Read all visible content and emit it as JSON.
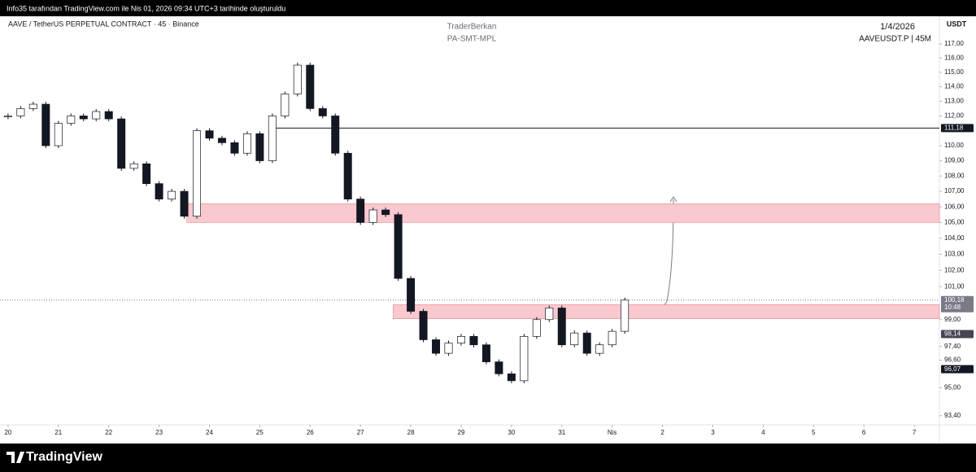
{
  "header": {
    "caption": "Info35 tarafından TradingView.com ile Nis 01, 2026 09:34 UTC+3 tarihinde oluşturuldu"
  },
  "chart_data": {
    "type": "candlestick",
    "title": "AAVE / TetherUS PERPETUAL CONTRACT · 45 · Binance",
    "author": "TraderBerkan",
    "subtitle": "PA-SMT-MPL",
    "date": "1/4/2026",
    "symbol": "AAVEUSDT.P | 45M",
    "y_axis_label": "USDT",
    "log": true,
    "up_color": "#ffffff",
    "down_color": "#131722",
    "x": [
      0,
      0.25,
      0.5,
      0.75,
      1,
      1.25,
      1.5,
      1.75,
      2,
      2.25,
      2.5,
      2.75,
      3,
      3.25,
      3.5,
      3.75,
      4,
      4.25,
      4.5,
      4.75,
      5,
      5.25,
      5.5,
      5.75,
      6,
      6.25,
      6.5,
      6.75,
      7,
      7.25,
      7.5,
      7.75,
      8,
      8.25,
      8.5,
      8.75,
      9,
      9.25,
      9.5,
      9.75,
      10,
      10.25,
      10.5,
      10.75,
      11,
      11.25,
      11.5,
      11.75,
      12,
      12.25
    ],
    "values": [
      112.0,
      112.5,
      112.8,
      110.0,
      111.5,
      112.0,
      111.8,
      112.3,
      111.8,
      108.5,
      108.8,
      107.5,
      106.5,
      107.0,
      105.4,
      111.0,
      110.5,
      110.2,
      109.5,
      110.8,
      109.0,
      112.0,
      113.5,
      115.5,
      112.5,
      112.0,
      109.5,
      106.5,
      105.0,
      105.8,
      105.5,
      101.5,
      99.5,
      97.8,
      97.0,
      97.6,
      98.0,
      97.5,
      96.5,
      95.8,
      95.4,
      98.0,
      99.0,
      99.7,
      97.5,
      98.2,
      97.0,
      97.5,
      98.3,
      100.18
    ],
    "xlim": [
      -0.16,
      18.5
    ],
    "xticks": [
      {
        "value": 0,
        "label": "20"
      },
      {
        "value": 1,
        "label": "21"
      },
      {
        "value": 2,
        "label": "22"
      },
      {
        "value": 3,
        "label": "23"
      },
      {
        "value": 4,
        "label": "24"
      },
      {
        "value": 5,
        "label": "25"
      },
      {
        "value": 6,
        "label": "26"
      },
      {
        "value": 7,
        "label": "27"
      },
      {
        "value": 8,
        "label": "28"
      },
      {
        "value": 9,
        "label": "29"
      },
      {
        "value": 10,
        "label": "30"
      },
      {
        "value": 11,
        "label": "31"
      },
      {
        "value": 12,
        "label": "Nis"
      },
      {
        "value": 13,
        "label": "2"
      },
      {
        "value": 14,
        "label": "3"
      },
      {
        "value": 15,
        "label": "4"
      },
      {
        "value": 16,
        "label": "5"
      },
      {
        "value": 17,
        "label": "6"
      },
      {
        "value": 18,
        "label": "7"
      }
    ],
    "ylim": [
      92.98,
      118.97
    ],
    "yticks": [
      {
        "value": 117,
        "label": "117,00"
      },
      {
        "value": 116,
        "label": "116,00"
      },
      {
        "value": 115,
        "label": "115,00"
      },
      {
        "value": 114,
        "label": "114,00"
      },
      {
        "value": 113,
        "label": "113,00"
      },
      {
        "value": 112,
        "label": "112,00"
      },
      {
        "value": 110,
        "label": "110,00"
      },
      {
        "value": 109,
        "label": "109,00"
      },
      {
        "value": 108,
        "label": "108,00"
      },
      {
        "value": 107,
        "label": "107,00"
      },
      {
        "value": 106,
        "label": "106,00"
      },
      {
        "value": 105,
        "label": "105,00"
      },
      {
        "value": 104,
        "label": "104,00"
      },
      {
        "value": 103,
        "label": "103,00"
      },
      {
        "value": 102,
        "label": "102,00"
      },
      {
        "value": 101,
        "label": "101,00"
      },
      {
        "value": 99,
        "label": "99,00"
      },
      {
        "value": 97.4,
        "label": "97,40"
      },
      {
        "value": 96.6,
        "label": "96,60"
      },
      {
        "value": 95,
        "label": "95,00"
      },
      {
        "value": 93.4,
        "label": "93,40"
      }
    ],
    "zones": [
      {
        "start": 3.55,
        "from": 105.0,
        "to": 106.2,
        "color": "#f9c9cf"
      },
      {
        "start": 7.65,
        "from": 99.05,
        "to": 99.9,
        "color": "#f9c9cf"
      }
    ],
    "level": {
      "start": 5.25,
      "value": 111.18
    },
    "price_labels": [
      {
        "value": 111.18,
        "label": "111,18",
        "color": "#131722"
      },
      {
        "value": 100.18,
        "label": "100,18",
        "color": "#787b86",
        "countdown": "10:48"
      },
      {
        "value": 98.14,
        "label": "98,14",
        "color": "#434651"
      },
      {
        "value": 96.07,
        "label": "96,07",
        "color": "#131722"
      }
    ]
  },
  "footer": {
    "logo": "TradingView"
  }
}
